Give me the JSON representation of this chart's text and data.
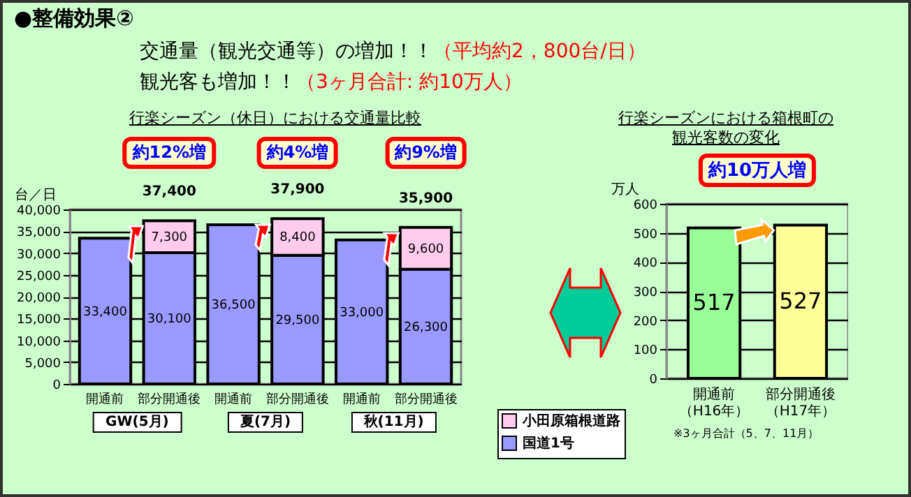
{
  "chart_data": [
    {
      "type": "bar",
      "title": "行楽シーズン（休日）における交通量比較",
      "annotations": [
        "●整備効果②",
        "交通量（観光交通等）の増加！！",
        "（平均約2，800台/日）",
        "観光客も増加！！",
        "（3ヶ月合計: 約10万人）",
        "約12%増",
        "約4%増",
        "約9%増",
        "GW(5月)",
        "夏(7月)",
        "秋(11月)"
      ],
      "categories": [
        "開通前",
        "部分開通後",
        "開通前",
        "部分開通後",
        "開通前",
        "部分開通後"
      ],
      "series": [
        {
          "name": "国道1号",
          "color": "#9999ff",
          "values": [
            33400,
            30100,
            36500,
            29500,
            33000,
            26300
          ],
          "value_labels": [
            "33,400",
            "30,100",
            "36,500",
            "29,500",
            "33,000",
            "26,300"
          ]
        },
        {
          "name": "小田原箱根道路",
          "color": "#ffccee",
          "values": [
            null,
            7300,
            null,
            8400,
            null,
            9600
          ],
          "value_labels": [
            null,
            "7,300",
            null,
            "8,400",
            null,
            "9,600"
          ]
        }
      ],
      "stacked": true,
      "totals": [
        null,
        "37,400",
        null,
        "37,900",
        null,
        "35,900"
      ],
      "ylabel": "台／日",
      "ylim": [
        0,
        40000
      ],
      "yticks": [
        0,
        {
          "value": 5000,
          "label": "5,000"
        },
        {
          "value": 10000,
          "label": "10,000"
        },
        {
          "value": 15000,
          "label": "15,000"
        },
        {
          "value": 20000,
          "label": "20,000"
        },
        {
          "value": 25000,
          "label": "25,000"
        },
        {
          "value": 30000,
          "label": "30,000"
        },
        {
          "value": 35000,
          "label": "35,000"
        },
        {
          "value": 40000,
          "label": "40,000"
        }
      ],
      "grid": "y",
      "legend": "bottom right"
    },
    {
      "type": "bar",
      "title": "行楽シーズンにおける箱根町の観光客数の変化",
      "annotations": [
        "約10万人増",
        "※3ヶ月合計（5、7、11月）"
      ],
      "categories": [
        "開通前（H16年）",
        "部分開通後（H17年）"
      ],
      "values": [
        517,
        527
      ],
      "colors": [
        "#99ff99",
        "#ffff99"
      ],
      "data_labels": true,
      "ylabel": "万人",
      "ylim": [
        0,
        600
      ],
      "yticks": [
        0,
        100,
        200,
        300,
        400,
        500,
        600
      ],
      "grid": "y"
    }
  ]
}
